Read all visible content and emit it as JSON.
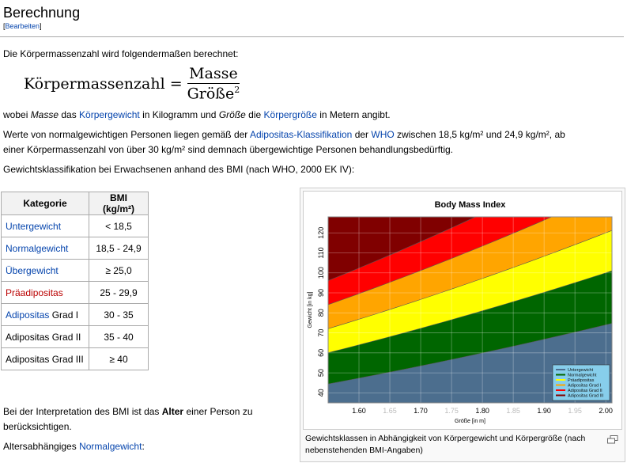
{
  "section": {
    "title": "Berechnung",
    "edit_open": "[",
    "edit_label": "Bearbeiten",
    "edit_close": "]"
  },
  "intro": "Die Körpermassenzahl wird folgendermaßen berechnet:",
  "formula": {
    "lhs": "Körpermassenzahl",
    "eq": "=",
    "numerator": "Masse",
    "denominator": "Größe",
    "exponent": "2"
  },
  "explain": {
    "t1": "wobei ",
    "masse": "Masse",
    "t2": " das ",
    "link_gewicht": "Körpergewicht",
    "t3": " in Kilogramm und ",
    "groesse": "Größe",
    "t4": " die ",
    "link_groesse": "Körpergröße",
    "t5": " in Metern angibt."
  },
  "paragraph2": {
    "t1": "Werte von normalgewichtigen Personen liegen gemäß der ",
    "link_klass": "Adipositas-Klassifikation",
    "t2": " der ",
    "link_who": "WHO",
    "t3": " zwischen 18,5 kg/m² und 24,9 kg/m², ab",
    "line2": "einer Körpermassenzahl von über 30 kg/m² sind demnach übergewichtige Personen behandlungsbedürftig."
  },
  "paragraph3": "Gewichtsklassifikation bei Erwachsenen anhand des BMI (nach WHO, 2000 EK IV):",
  "table": {
    "headers": [
      "Kategorie",
      "BMI (kg/m²)"
    ],
    "rows": [
      {
        "cat": "Untergewicht",
        "suffix": "",
        "bmi": "< 18,5",
        "link": true,
        "color": "#0645ad"
      },
      {
        "cat": "Normalgewicht",
        "suffix": "",
        "bmi": "18,5 - 24,9",
        "link": true,
        "color": "#0645ad"
      },
      {
        "cat": "Übergewicht",
        "suffix": "",
        "bmi": "≥ 25,0",
        "link": true,
        "color": "#0645ad"
      },
      {
        "cat": "Präadipositas",
        "suffix": "",
        "bmi": "25 - 29,9",
        "link": true,
        "color": "#ba0000"
      },
      {
        "cat": "Adipositas",
        "suffix": " Grad I",
        "bmi": "30 - 35",
        "link": true,
        "color": "#0645ad"
      },
      {
        "cat": "Adipositas Grad II",
        "suffix": "",
        "bmi": "35 - 40",
        "link": false,
        "color": "#000000"
      },
      {
        "cat": "Adipositas Grad III",
        "suffix": "",
        "bmi": "≥ 40",
        "link": false,
        "color": "#000000"
      }
    ]
  },
  "interpretation": {
    "t1": "Bei der Interpretation des BMI ist das ",
    "bold": "Alter",
    "t2": " einer Person zu",
    "line2": "berücksichtigen."
  },
  "age": {
    "t1": "Altersabhängiges ",
    "link": "Normalgewicht",
    "t2": ":"
  },
  "figure": {
    "caption": "Gewichtsklassen in Abhängigkeit von Körpergewicht und Körpergröße (nach nebenstehenden BMI-Angaben)",
    "icon": "magnify-icon"
  },
  "chart_data": {
    "type": "area",
    "title": "Body Mass Index",
    "xlabel": "Größe [in m]",
    "ylabel": "Gewicht [in kg]",
    "xlim": [
      1.55,
      2.01
    ],
    "ylim": [
      35,
      128
    ],
    "x_ticks": [
      "1.60",
      "1.65",
      "1.70",
      "1.75",
      "1.80",
      "1.85",
      "1.90",
      "1.95",
      "2.00"
    ],
    "y_ticks": [
      "40",
      "50",
      "60",
      "70",
      "80",
      "90",
      "100",
      "110",
      "120"
    ],
    "grid": true,
    "legend_position": "bottom-right",
    "boundaries_bmi": [
      18.5,
      25,
      30,
      35,
      40
    ],
    "series": [
      {
        "name": "Untergewicht",
        "color": "#4c6e8e",
        "bmi_range": [
          0,
          18.5
        ]
      },
      {
        "name": "Normalgewicht",
        "color": "#006600",
        "bmi_range": [
          18.5,
          25
        ]
      },
      {
        "name": "Präadipositas",
        "color": "#ffff00",
        "bmi_range": [
          25,
          30
        ]
      },
      {
        "name": "Adipositas Grad I",
        "color": "#ffa500",
        "bmi_range": [
          30,
          35
        ]
      },
      {
        "name": "Adipositas Grad II",
        "color": "#ff0000",
        "bmi_range": [
          35,
          40
        ]
      },
      {
        "name": "Adipositas Grad III",
        "color": "#800000",
        "bmi_range": [
          40,
          100
        ]
      }
    ]
  }
}
